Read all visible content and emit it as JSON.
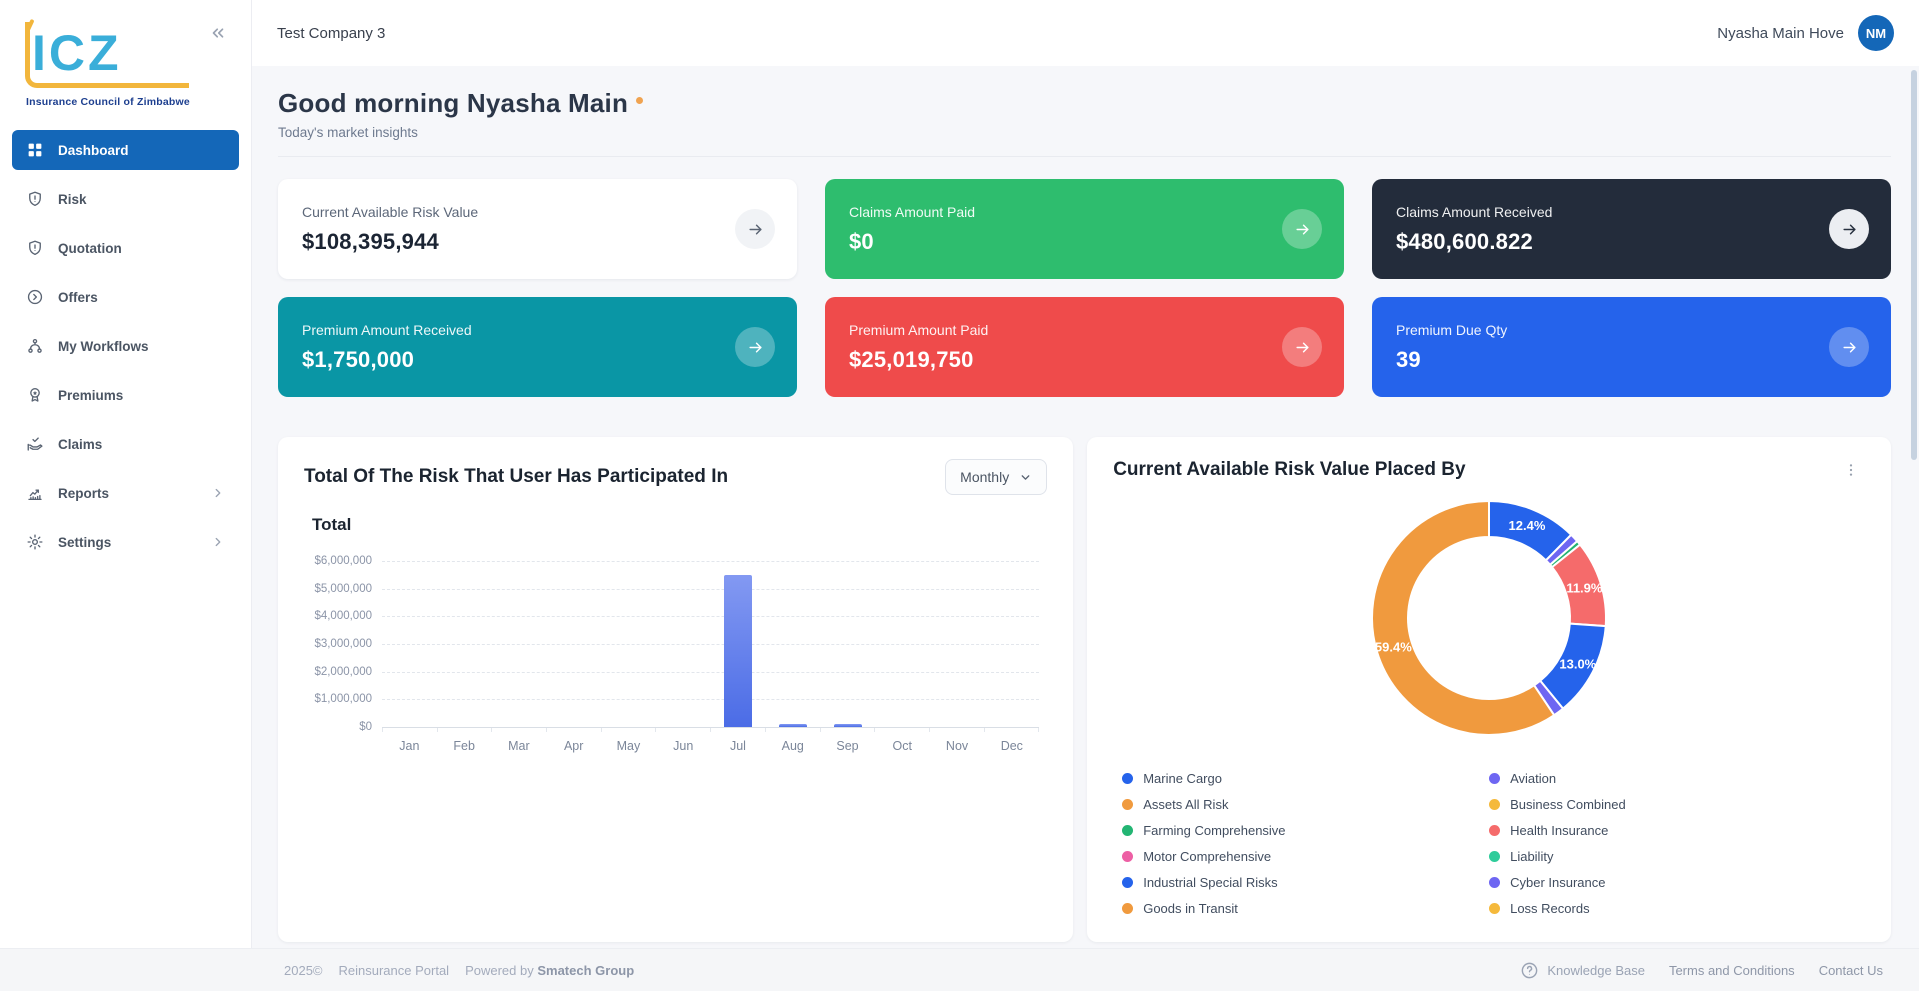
{
  "colors": {
    "accent": "#1467b8",
    "logo_cyan": "#3aaed9",
    "logo_yellow": "#f2b63c",
    "logo_navy": "#1d3f8f"
  },
  "sidebar": {
    "logo": {
      "text": "ICZ",
      "tagline": "Insurance Council of Zimbabwe"
    },
    "items": [
      {
        "label": "Dashboard",
        "icon": "dashboard-icon",
        "active": true,
        "expandable": false
      },
      {
        "label": "Risk",
        "icon": "shield-alert-icon",
        "active": false,
        "expandable": false
      },
      {
        "label": "Quotation",
        "icon": "shield-alert-icon",
        "active": false,
        "expandable": false
      },
      {
        "label": "Offers",
        "icon": "circle-arrow-icon",
        "active": false,
        "expandable": false
      },
      {
        "label": "My Workflows",
        "icon": "workflow-icon",
        "active": false,
        "expandable": false
      },
      {
        "label": "Premiums",
        "icon": "award-icon",
        "active": false,
        "expandable": false
      },
      {
        "label": "Claims",
        "icon": "claims-icon",
        "active": false,
        "expandable": false
      },
      {
        "label": "Reports",
        "icon": "reports-icon",
        "active": false,
        "expandable": true
      },
      {
        "label": "Settings",
        "icon": "gear-icon",
        "active": false,
        "expandable": true
      }
    ]
  },
  "header": {
    "company": "Test Company 3",
    "user": "Nyasha Main Hove",
    "avatar_initials": "NM"
  },
  "greeting": {
    "title": "Good morning Nyasha Main",
    "subtitle": "Today's market insights"
  },
  "stat_cards": [
    {
      "label": "Current Available Risk Value",
      "value": "$108,395,944",
      "variant": "white",
      "color": "#ffffff"
    },
    {
      "label": "Claims Amount Paid",
      "value": "$0",
      "variant": "color",
      "color": "#2ebd6e"
    },
    {
      "label": "Claims Amount Received",
      "value": "$480,600.822",
      "variant": "dark",
      "color": "#232c3b"
    },
    {
      "label": "Premium Amount Received",
      "value": "$1,750,000",
      "variant": "color",
      "color": "#0a96a5"
    },
    {
      "label": "Premium Amount Paid",
      "value": "$25,019,750",
      "variant": "color",
      "color": "#ef4b4b"
    },
    {
      "label": "Premium Due Qty",
      "value": "39",
      "variant": "color",
      "color": "#2563eb"
    }
  ],
  "chart_data": [
    {
      "type": "bar",
      "title": "Total Of The Risk That User Has Participated In",
      "period_selector": "Monthly",
      "series_label": "Total",
      "categories": [
        "Jan",
        "Feb",
        "Mar",
        "Apr",
        "May",
        "Jun",
        "Jul",
        "Aug",
        "Sep",
        "Oct",
        "Nov",
        "Dec"
      ],
      "values": [
        0,
        0,
        0,
        0,
        0,
        0,
        5500000,
        100000,
        100000,
        0,
        0,
        0
      ],
      "ylim": [
        0,
        6000000
      ],
      "ytick_values": [
        0,
        1000000,
        2000000,
        3000000,
        4000000,
        5000000,
        6000000
      ],
      "ytick_labels": [
        "$0",
        "$1,000,000",
        "$2,000,000",
        "$3,000,000",
        "$4,000,000",
        "$5,000,000",
        "$6,000,000"
      ],
      "grid": "dashed-horizontal",
      "bar_gradient": [
        "#8399f2",
        "#4b6ce6"
      ]
    },
    {
      "type": "donut",
      "title": "Current Available Risk Value Placed By",
      "slices": [
        {
          "name": "Marine Cargo",
          "pct": 12.4,
          "color": "#2563eb",
          "label": "12.4%"
        },
        {
          "name": "Aviation",
          "pct": 1.2,
          "color": "#6e66f2",
          "label": ""
        },
        {
          "name": "Farming Comprehensive",
          "pct": 0.6,
          "color": "#23b573",
          "label": ""
        },
        {
          "name": "Health Insurance",
          "pct": 11.9,
          "color": "#f56b6b",
          "label": "11.9%"
        },
        {
          "name": "Industrial Special Risks",
          "pct": 13.0,
          "color": "#2563eb",
          "label": "13.0%"
        },
        {
          "name": "Cyber Insurance",
          "pct": 1.5,
          "color": "#6e66f2",
          "label": ""
        },
        {
          "name": "Assets All Risk",
          "pct": 59.4,
          "color": "#f09a3e",
          "label": "59.4%"
        }
      ],
      "legend_columns": [
        [
          {
            "name": "Marine Cargo",
            "color": "#2563eb"
          },
          {
            "name": "Assets All Risk",
            "color": "#f09a3e"
          },
          {
            "name": "Farming Comprehensive",
            "color": "#23b573"
          },
          {
            "name": "Motor Comprehensive",
            "color": "#ed5fa4"
          },
          {
            "name": "Industrial Special Risks",
            "color": "#2563eb"
          },
          {
            "name": "Goods in Transit",
            "color": "#f09a3e"
          }
        ],
        [
          {
            "name": "Aviation",
            "color": "#6e66f2"
          },
          {
            "name": "Business Combined",
            "color": "#f5b93b"
          },
          {
            "name": "Health Insurance",
            "color": "#f56b6b"
          },
          {
            "name": "Liability",
            "color": "#2ecc9a"
          },
          {
            "name": "Cyber Insurance",
            "color": "#6e66f2"
          },
          {
            "name": "Loss Records",
            "color": "#f5b93b"
          }
        ]
      ],
      "legend_position": "bottom"
    }
  ],
  "footer": {
    "year": "2025©",
    "app": "Reinsurance Portal",
    "powered_by_prefix": "Powered by",
    "powered_by": "Smatech Group",
    "knowledge_base": "Knowledge Base",
    "terms": "Terms and Conditions",
    "contact": "Contact Us"
  }
}
